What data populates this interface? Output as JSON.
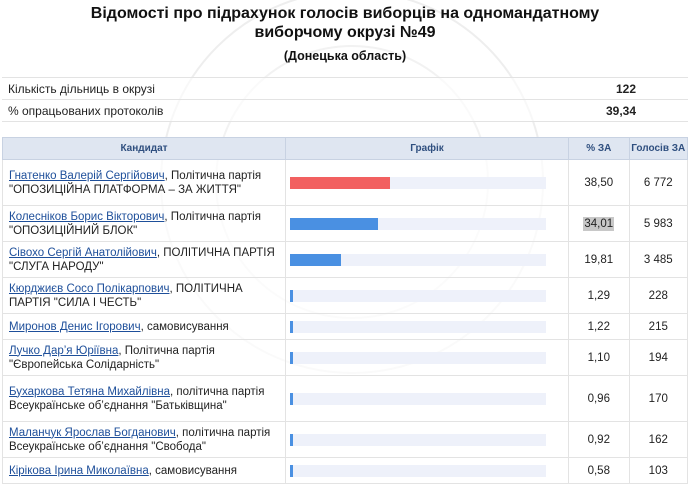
{
  "header": {
    "title_line1": "Відомості про підрахунок голосів виборців на одномандатному",
    "title_line2": "виборчому окрузі №49",
    "subtitle": "(Донецька область)"
  },
  "summary": [
    {
      "label": "Кількість дільниць в окрузі",
      "value": "122"
    },
    {
      "label": "% опрацьованих протоколів",
      "value": "39,34"
    }
  ],
  "columns": {
    "candidate": "Кандидат",
    "graph": "Графік",
    "pct": "% ЗА",
    "votes": "Голосів ЗА"
  },
  "colors": {
    "bar_top": "#f26060",
    "bar": "#4a90e2",
    "track": "#eef1fa",
    "link": "#1e4f9a",
    "header_bg": "#dfe6f1"
  },
  "candidates": [
    {
      "name": "Гнатенко Валерій Сергійович",
      "desc": ", Політична партія \"ОПОЗИЦІЙНА ПЛАТФОРМА – ЗА ЖИТТЯ\"",
      "pct": "38,50",
      "pct_value": 38.5,
      "votes": "6 772",
      "highlight": false
    },
    {
      "name": "Колесніков Борис Вікторович",
      "desc": ", Політична партія \"ОПОЗИЦІЙНИЙ БЛОК\"",
      "pct": "34,01",
      "pct_value": 34.01,
      "votes": "5 983",
      "highlight": true
    },
    {
      "name": "Сівохо Сергій Анатолійович",
      "desc": ", ПОЛІТИЧНА ПАРТІЯ \"СЛУГА НАРОДУ\"",
      "pct": "19,81",
      "pct_value": 19.81,
      "votes": "3 485",
      "highlight": false
    },
    {
      "name": "Кюрджиєв Сосо Полікарпович",
      "desc": ", ПОЛІТИЧНА ПАРТІЯ \"СИЛА І ЧЕСТЬ\"",
      "pct": "1,29",
      "pct_value": 1.29,
      "votes": "228",
      "highlight": false
    },
    {
      "name": "Миронов Денис Ігорович",
      "desc": ", самовисування",
      "pct": "1,22",
      "pct_value": 1.22,
      "votes": "215",
      "highlight": false
    },
    {
      "name": "Лучко Дар’я Юріївна",
      "desc": ", Політична партія \"Європейська Солідарність\"",
      "pct": "1,10",
      "pct_value": 1.1,
      "votes": "194",
      "highlight": false
    },
    {
      "name": "Бухаркова Тетяна Михайлівна",
      "desc": ", політична партія Всеукраїнське об’єднання \"Батьківщина\"",
      "pct": "0,96",
      "pct_value": 0.96,
      "votes": "170",
      "highlight": false
    },
    {
      "name": "Маланчук Ярослав Богданович",
      "desc": ", політична партія Всеукраїнське об’єднання \"Свобода\"",
      "pct": "0,92",
      "pct_value": 0.92,
      "votes": "162",
      "highlight": false
    },
    {
      "name": "Кірікова Ірина Миколаївна",
      "desc": ", самовисування",
      "pct": "0,58",
      "pct_value": 0.58,
      "votes": "103",
      "highlight": false
    }
  ]
}
